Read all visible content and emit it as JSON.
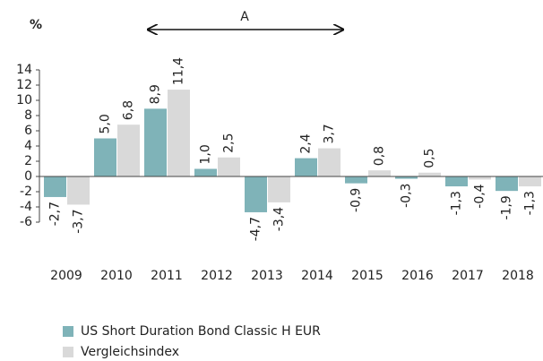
{
  "chart_data": {
    "type": "bar",
    "unit_label": "%",
    "annotation": "A",
    "categories": [
      "2009",
      "2010",
      "2011",
      "2012",
      "2013",
      "2014",
      "2015",
      "2016",
      "2017",
      "2018"
    ],
    "series": [
      {
        "name": "US Short Duration Bond Classic H EUR",
        "color": "#7fb3b8",
        "values": [
          -2.7,
          5.0,
          8.9,
          1.0,
          -4.7,
          2.4,
          -0.9,
          -0.3,
          -1.3,
          -1.9
        ],
        "value_labels": [
          "-2,7",
          "5,0",
          "8,9",
          "1,0",
          "-4,7",
          "2,4",
          "-0,9",
          "-0,3",
          "-1,3",
          "-1,9"
        ]
      },
      {
        "name": "Vergleichsindex",
        "color": "#d9d9d9",
        "values": [
          -3.7,
          6.8,
          11.4,
          2.5,
          -3.4,
          3.7,
          0.8,
          0.5,
          -0.4,
          -1.3
        ],
        "value_labels": [
          "-3,7",
          "6,8",
          "11,4",
          "2,5",
          "-3,4",
          "3,7",
          "0,8",
          "0,5",
          "-0,4",
          "-1,3"
        ]
      }
    ],
    "ylim": [
      -6,
      14
    ],
    "yticks": [
      -6,
      -4,
      -2,
      0,
      2,
      4,
      6,
      8,
      10,
      12,
      14
    ],
    "grid": false
  }
}
